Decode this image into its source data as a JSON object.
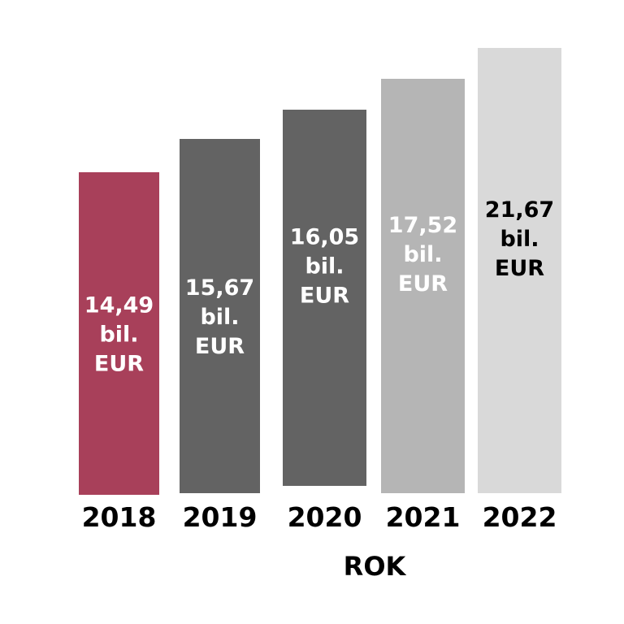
{
  "chart_data": {
    "type": "bar",
    "categories": [
      "2018",
      "2019",
      "2020",
      "2021",
      "2022"
    ],
    "values": [
      14.49,
      15.67,
      16.05,
      17.52,
      21.67
    ],
    "value_labels": [
      [
        "14,49",
        "bil.",
        "EUR"
      ],
      [
        "15,67",
        "bil.",
        "EUR"
      ],
      [
        "16,05",
        "bil.",
        "EUR"
      ],
      [
        "17,52",
        "bil.",
        "EUR"
      ],
      [
        "21,67",
        "bil.",
        "EUR"
      ]
    ],
    "bar_colors": [
      "#a8405a",
      "#636363",
      "#636363",
      "#b5b5b5",
      "#d9d9d9"
    ],
    "label_colors": [
      "#ffffff",
      "#ffffff",
      "#ffffff",
      "#ffffff",
      "#000000"
    ],
    "title": "",
    "xlabel": "ROK",
    "ylabel": "",
    "grid": false,
    "legend": "none"
  }
}
